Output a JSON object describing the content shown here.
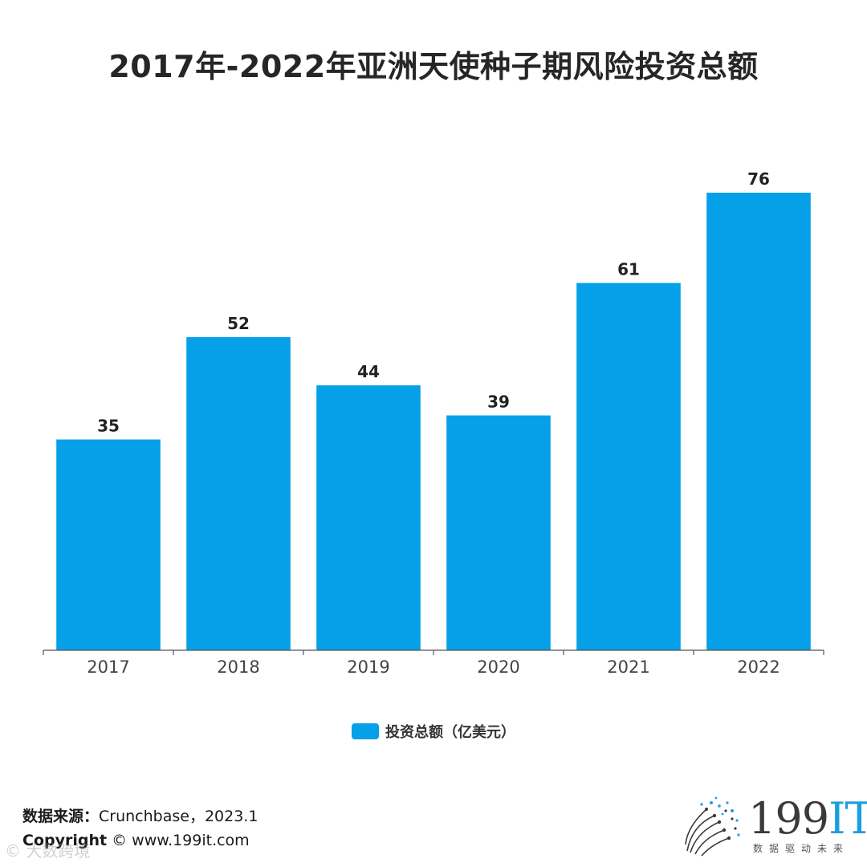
{
  "title": "2017年-2022年亚洲天使种子期风险投资总额",
  "colors": {
    "bar": "#06A0E8",
    "axis": "#555555",
    "tick_label": "#444444",
    "data_label": "#222222"
  },
  "chart_data": {
    "type": "bar",
    "title": "2017年-2022年亚洲天使种子期风险投资总额",
    "categories": [
      "2017",
      "2018",
      "2019",
      "2020",
      "2021",
      "2022"
    ],
    "series": [
      {
        "name": "投资总额（亿美元）",
        "values": [
          35,
          52,
          44,
          39,
          61,
          76
        ]
      }
    ],
    "xlabel": "",
    "ylabel": "",
    "ylim": [
      0,
      80
    ],
    "grid": false,
    "legend": "bottom-center",
    "data_labels": true
  },
  "legend": {
    "label": "投资总额（亿美元）"
  },
  "footer": {
    "source_key": "数据来源：",
    "source_value": "Crunchbase，2023.1",
    "copyright_key": "Copyright",
    "copyright_value": "© www.199it.com",
    "watermark": "© 大数跨境"
  },
  "logo": {
    "main": "199",
    "accent": "IT",
    "sub": "数据驱动未来",
    "icon": "dots-sphere-icon"
  }
}
